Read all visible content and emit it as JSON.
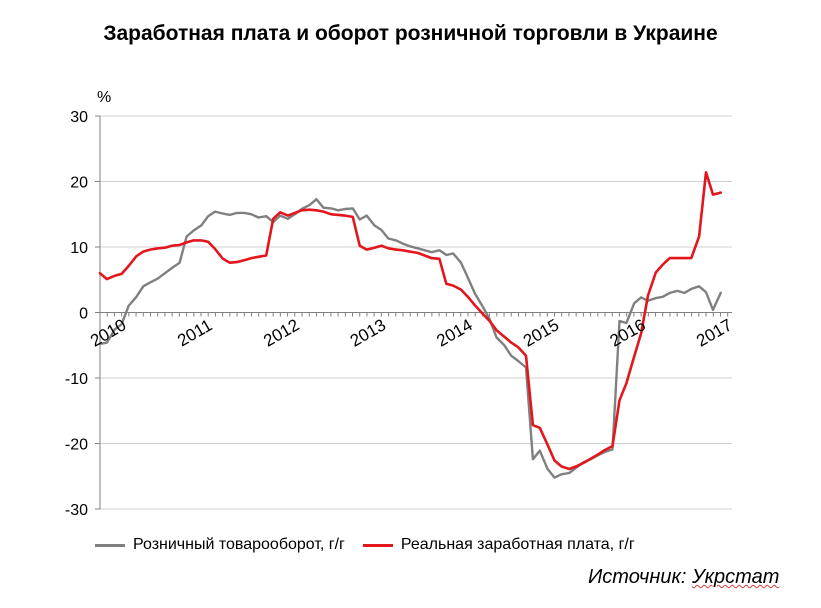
{
  "chart_data": {
    "type": "line",
    "title": "Заработная плата и оборот розничной торговли в Украине",
    "ylabel": "%",
    "ylim": [
      -30,
      30
    ],
    "yticks": [
      30,
      20,
      10,
      0,
      -10,
      -20,
      -30
    ],
    "xlim": [
      2010.0,
      2017.3
    ],
    "year_ticks": [
      "2010",
      "2011",
      "2012",
      "2013",
      "2014",
      "2015",
      "2016",
      "2017"
    ],
    "grid": true,
    "legend_position": "bottom",
    "series": [
      {
        "name": "Розничный товарооборот, г/г",
        "color": "#808080",
        "points": [
          [
            2010.0,
            -4.8
          ],
          [
            2010.08,
            -4.6
          ],
          [
            2010.17,
            -2.6
          ],
          [
            2010.25,
            -1.8
          ],
          [
            2010.33,
            1.0
          ],
          [
            2010.42,
            2.4
          ],
          [
            2010.5,
            4.0
          ],
          [
            2010.58,
            4.6
          ],
          [
            2010.67,
            5.2
          ],
          [
            2010.75,
            6.0
          ],
          [
            2010.83,
            6.8
          ],
          [
            2010.92,
            7.6
          ],
          [
            2011.0,
            11.6
          ],
          [
            2011.08,
            12.5
          ],
          [
            2011.17,
            13.3
          ],
          [
            2011.25,
            14.7
          ],
          [
            2011.33,
            15.4
          ],
          [
            2011.42,
            15.1
          ],
          [
            2011.5,
            14.9
          ],
          [
            2011.58,
            15.2
          ],
          [
            2011.67,
            15.2
          ],
          [
            2011.75,
            15.0
          ],
          [
            2011.83,
            14.5
          ],
          [
            2011.92,
            14.7
          ],
          [
            2012.0,
            13.8
          ],
          [
            2012.08,
            14.8
          ],
          [
            2012.17,
            14.3
          ],
          [
            2012.25,
            15.0
          ],
          [
            2012.33,
            15.8
          ],
          [
            2012.42,
            16.4
          ],
          [
            2012.5,
            17.3
          ],
          [
            2012.58,
            16.0
          ],
          [
            2012.67,
            15.9
          ],
          [
            2012.75,
            15.6
          ],
          [
            2012.83,
            15.8
          ],
          [
            2012.92,
            15.9
          ],
          [
            2013.0,
            14.2
          ],
          [
            2013.08,
            14.8
          ],
          [
            2013.17,
            13.3
          ],
          [
            2013.25,
            12.6
          ],
          [
            2013.33,
            11.3
          ],
          [
            2013.42,
            11.0
          ],
          [
            2013.5,
            10.5
          ],
          [
            2013.58,
            10.1
          ],
          [
            2013.67,
            9.8
          ],
          [
            2013.75,
            9.5
          ],
          [
            2013.83,
            9.2
          ],
          [
            2013.92,
            9.5
          ],
          [
            2014.0,
            8.8
          ],
          [
            2014.08,
            9.0
          ],
          [
            2014.17,
            7.6
          ],
          [
            2014.25,
            5.3
          ],
          [
            2014.33,
            2.9
          ],
          [
            2014.42,
            0.9
          ],
          [
            2014.5,
            -1.0
          ],
          [
            2014.58,
            -3.8
          ],
          [
            2014.67,
            -5.0
          ],
          [
            2014.75,
            -6.6
          ],
          [
            2014.83,
            -7.4
          ],
          [
            2014.92,
            -8.4
          ],
          [
            2015.0,
            -22.4
          ],
          [
            2015.08,
            -21.1
          ],
          [
            2015.17,
            -23.9
          ],
          [
            2015.25,
            -25.2
          ],
          [
            2015.33,
            -24.7
          ],
          [
            2015.42,
            -24.5
          ],
          [
            2015.5,
            -23.7
          ],
          [
            2015.58,
            -22.9
          ],
          [
            2015.67,
            -22.4
          ],
          [
            2015.75,
            -21.8
          ],
          [
            2015.83,
            -21.3
          ],
          [
            2015.92,
            -20.9
          ],
          [
            2016.0,
            -1.3
          ],
          [
            2016.08,
            -1.6
          ],
          [
            2016.17,
            1.4
          ],
          [
            2016.25,
            2.3
          ],
          [
            2016.33,
            1.8
          ],
          [
            2016.42,
            2.2
          ],
          [
            2016.5,
            2.4
          ],
          [
            2016.58,
            3.0
          ],
          [
            2016.67,
            3.3
          ],
          [
            2016.75,
            3.0
          ],
          [
            2016.83,
            3.6
          ],
          [
            2016.92,
            4.0
          ],
          [
            2017.0,
            3.1
          ],
          [
            2017.08,
            0.4
          ],
          [
            2017.17,
            3.0
          ]
        ]
      },
      {
        "name": "Реальная заработная плата, г/г",
        "color": "#e3161d",
        "points": [
          [
            2010.0,
            6.0
          ],
          [
            2010.08,
            5.1
          ],
          [
            2010.17,
            5.6
          ],
          [
            2010.25,
            5.9
          ],
          [
            2010.33,
            7.1
          ],
          [
            2010.42,
            8.6
          ],
          [
            2010.5,
            9.3
          ],
          [
            2010.58,
            9.6
          ],
          [
            2010.67,
            9.8
          ],
          [
            2010.75,
            9.9
          ],
          [
            2010.83,
            10.2
          ],
          [
            2010.92,
            10.3
          ],
          [
            2011.0,
            10.7
          ],
          [
            2011.08,
            11.0
          ],
          [
            2011.17,
            11.0
          ],
          [
            2011.25,
            10.8
          ],
          [
            2011.33,
            9.7
          ],
          [
            2011.42,
            8.2
          ],
          [
            2011.5,
            7.6
          ],
          [
            2011.58,
            7.7
          ],
          [
            2011.67,
            8.0
          ],
          [
            2011.75,
            8.3
          ],
          [
            2011.83,
            8.5
          ],
          [
            2011.92,
            8.7
          ],
          [
            2012.0,
            14.3
          ],
          [
            2012.08,
            15.3
          ],
          [
            2012.17,
            14.8
          ],
          [
            2012.25,
            15.2
          ],
          [
            2012.33,
            15.6
          ],
          [
            2012.42,
            15.7
          ],
          [
            2012.5,
            15.6
          ],
          [
            2012.58,
            15.4
          ],
          [
            2012.67,
            15.0
          ],
          [
            2012.75,
            14.9
          ],
          [
            2012.83,
            14.8
          ],
          [
            2012.92,
            14.6
          ],
          [
            2013.0,
            10.2
          ],
          [
            2013.08,
            9.6
          ],
          [
            2013.17,
            9.9
          ],
          [
            2013.25,
            10.2
          ],
          [
            2013.33,
            9.8
          ],
          [
            2013.42,
            9.6
          ],
          [
            2013.5,
            9.5
          ],
          [
            2013.58,
            9.3
          ],
          [
            2013.67,
            9.1
          ],
          [
            2013.75,
            8.7
          ],
          [
            2013.83,
            8.3
          ],
          [
            2013.92,
            8.2
          ],
          [
            2014.0,
            4.4
          ],
          [
            2014.08,
            4.1
          ],
          [
            2014.17,
            3.5
          ],
          [
            2014.25,
            2.4
          ],
          [
            2014.33,
            1.1
          ],
          [
            2014.42,
            -0.2
          ],
          [
            2014.5,
            -1.3
          ],
          [
            2014.58,
            -2.7
          ],
          [
            2014.67,
            -3.7
          ],
          [
            2014.75,
            -4.6
          ],
          [
            2014.83,
            -5.3
          ],
          [
            2014.92,
            -6.6
          ],
          [
            2015.0,
            -17.2
          ],
          [
            2015.08,
            -17.6
          ],
          [
            2015.17,
            -20.2
          ],
          [
            2015.25,
            -22.6
          ],
          [
            2015.33,
            -23.5
          ],
          [
            2015.42,
            -23.9
          ],
          [
            2015.5,
            -23.5
          ],
          [
            2015.58,
            -23.0
          ],
          [
            2015.67,
            -22.3
          ],
          [
            2015.75,
            -21.7
          ],
          [
            2015.83,
            -21.0
          ],
          [
            2015.92,
            -20.4
          ],
          [
            2016.0,
            -13.4
          ],
          [
            2016.08,
            -10.8
          ],
          [
            2016.17,
            -6.7
          ],
          [
            2016.25,
            -3.2
          ],
          [
            2016.33,
            2.6
          ],
          [
            2016.42,
            6.1
          ],
          [
            2016.5,
            7.3
          ],
          [
            2016.58,
            8.3
          ],
          [
            2016.67,
            8.3
          ],
          [
            2016.75,
            8.3
          ],
          [
            2016.83,
            8.3
          ],
          [
            2016.92,
            11.6
          ],
          [
            2017.0,
            21.4
          ],
          [
            2017.08,
            18.0
          ],
          [
            2017.17,
            18.3
          ]
        ]
      }
    ]
  },
  "source": {
    "prefix": "Источник: ",
    "org": "Укрстат"
  }
}
